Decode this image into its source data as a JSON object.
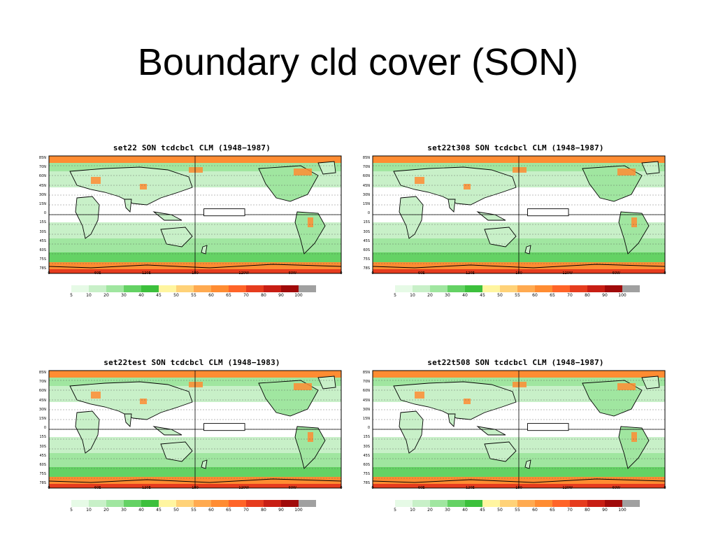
{
  "slide": {
    "title": "Boundary cld cover (SON)"
  },
  "panels": [
    {
      "title": "set22 SON tcdcbcl CLM (1948−1987)"
    },
    {
      "title": "set22t308 SON tcdcbcl CLM (1948−1987)"
    },
    {
      "title": "set22test SON tcdcbcl CLM (1948−1983)"
    },
    {
      "title": "set22t508 SON tcdcbcl CLM (1948−1987)"
    }
  ],
  "lat_labels": [
    "85N",
    "70N",
    "60N",
    "45N",
    "30N",
    "15N",
    "0",
    "15S",
    "30S",
    "45S",
    "60S",
    "75S",
    "78S"
  ],
  "lon_labels": [
    "0",
    "60E",
    "120E",
    "180",
    "120W",
    "60W",
    "0"
  ],
  "colorbar": {
    "labels": [
      "5",
      "10",
      "20",
      "30",
      "40",
      "45",
      "50",
      "55",
      "60",
      "65",
      "70",
      "80",
      "90",
      "100"
    ],
    "colors": [
      "#e6fae6",
      "#c8f0c8",
      "#a0e6a0",
      "#64d264",
      "#3cc03c",
      "#fff5a0",
      "#ffd278",
      "#ffaa50",
      "#ff8c32",
      "#ff6428",
      "#e63c1e",
      "#c81e14",
      "#a00a0a",
      "#a0a0a0"
    ]
  },
  "map_colors": {
    "ocean_low": "#ffffff",
    "ocean_mid": "#c8f0c8",
    "stratus": "#a0e6a0",
    "southern_ocean": "#64d264",
    "high_cloud": "#ff8c32",
    "very_high": "#e63c1e",
    "land_outline": "#000000"
  }
}
